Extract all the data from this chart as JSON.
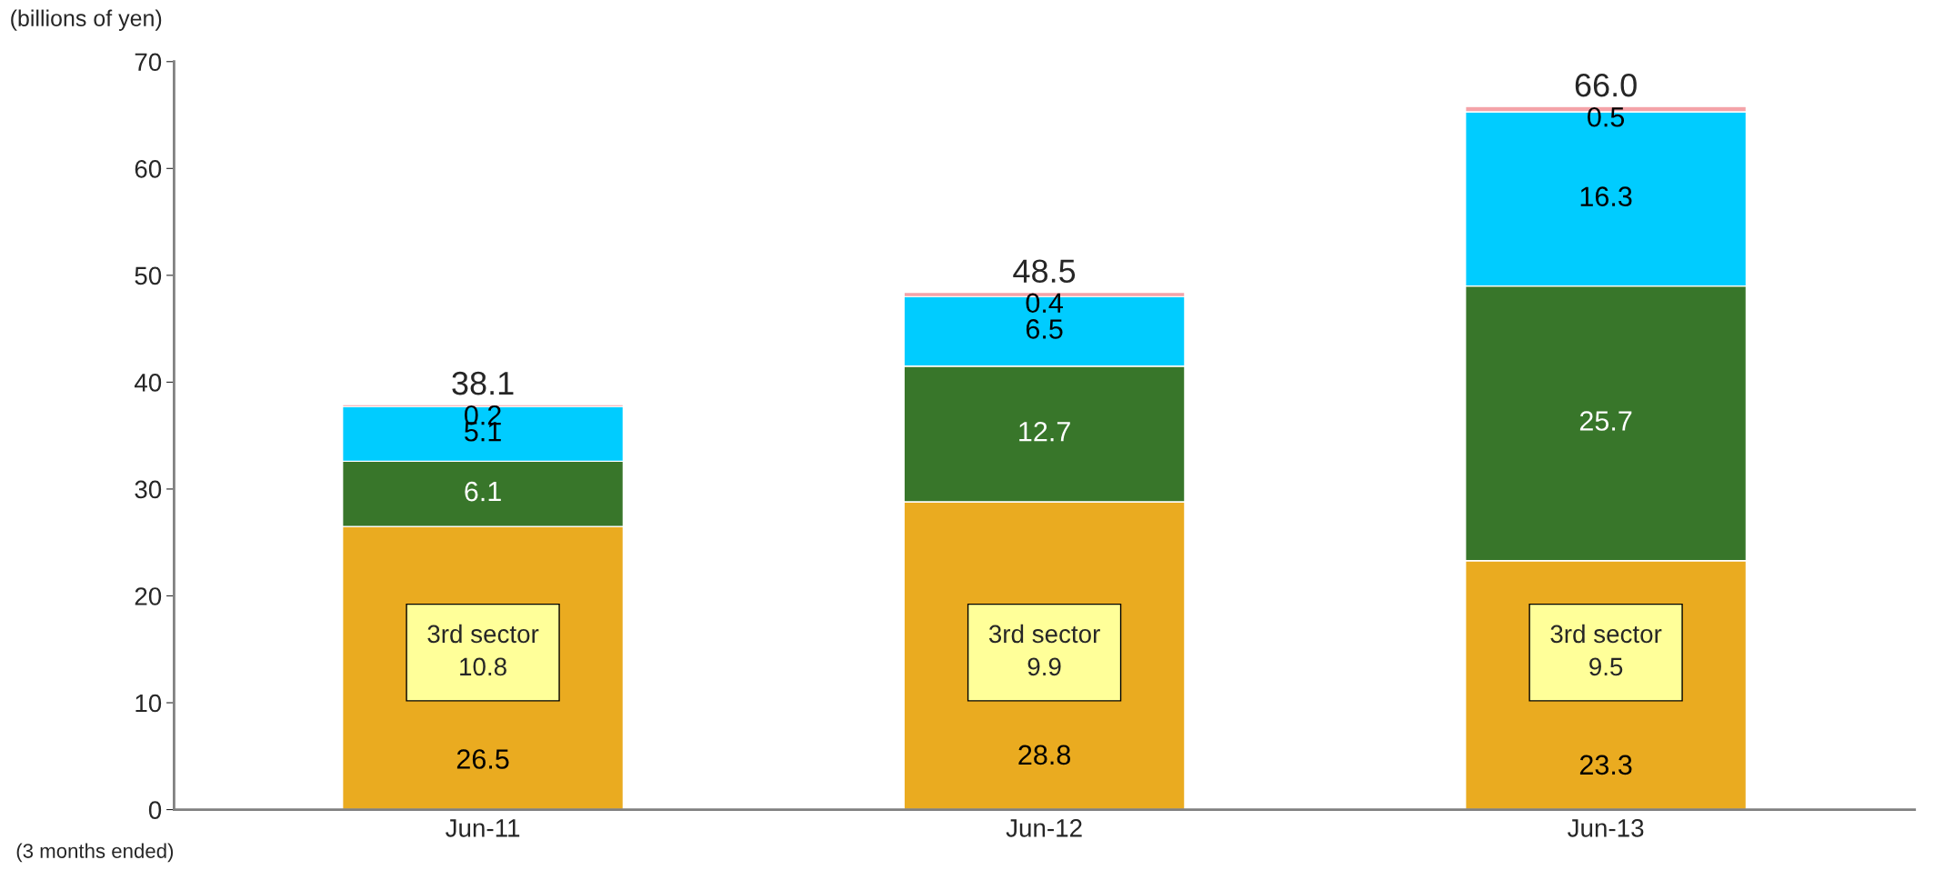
{
  "chart_data": {
    "type": "bar",
    "stacked": true,
    "ylabel": "(billions of yen)",
    "xlabel": "(3 months ended)",
    "categories": [
      "Jun-11",
      "Jun-12",
      "Jun-13"
    ],
    "series": [
      {
        "color": "#eaab20",
        "values": [
          26.5,
          28.8,
          23.3
        ]
      },
      {
        "color": "#38762a",
        "values": [
          6.1,
          12.7,
          25.7
        ]
      },
      {
        "color": "#00ccff",
        "values": [
          5.1,
          6.5,
          16.3
        ]
      },
      {
        "color": "#f4a3a8",
        "values": [
          0.2,
          0.4,
          0.5
        ]
      }
    ],
    "data_labels": true,
    "totals": [
      "38.1",
      "48.5",
      "66.0"
    ],
    "annotations": [
      "3rd sector\n10.8",
      "3rd sector\n9.9",
      "3rd sector\n9.5"
    ],
    "ylim": [
      0,
      70
    ],
    "yticks": [
      0,
      10,
      20,
      30,
      40,
      50,
      60,
      70
    ],
    "grid": false,
    "legend": false
  }
}
